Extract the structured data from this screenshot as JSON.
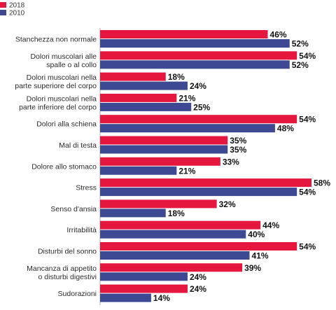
{
  "chart_data": {
    "type": "bar",
    "orientation": "horizontal",
    "categories": [
      [
        "Stanchezza non normale"
      ],
      [
        "Dolori muscolari alle",
        "spalle o al collo"
      ],
      [
        "Dolori muscolari nella",
        "parte superiore del corpo"
      ],
      [
        "Dolori muscolari nella",
        "parte inferiore del corpo"
      ],
      [
        "Dolori alla schiena"
      ],
      [
        "Mal di testa"
      ],
      [
        "Dolore allo stomaco"
      ],
      [
        "Stress"
      ],
      [
        "Senso d'ansia"
      ],
      [
        "Irritabilità"
      ],
      [
        "Disturbi del sonno"
      ],
      [
        "Mancanza di appetito",
        "o disturbi digestivi"
      ],
      [
        "Sudorazioni"
      ]
    ],
    "series": [
      {
        "name": "2018",
        "color": "#e5173f",
        "values": [
          46,
          54,
          18,
          21,
          54,
          35,
          33,
          58,
          32,
          44,
          54,
          39,
          24
        ]
      },
      {
        "name": "2010",
        "color": "#3d4a93",
        "values": [
          52,
          52,
          24,
          25,
          48,
          35,
          21,
          54,
          18,
          40,
          41,
          24,
          14
        ]
      }
    ],
    "value_suffix": "%",
    "xlim": [
      0,
      58
    ],
    "legend_position": "top-left",
    "title": "",
    "xlabel": "",
    "ylabel": ""
  }
}
